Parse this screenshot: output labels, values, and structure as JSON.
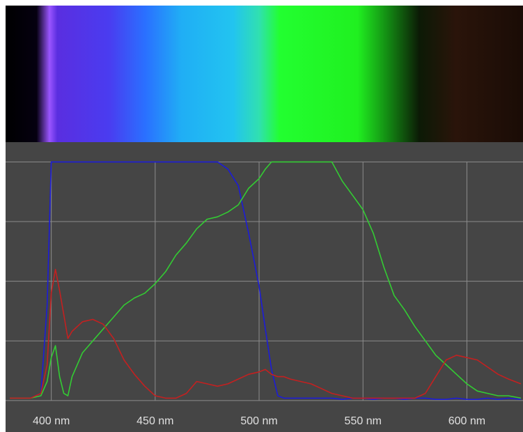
{
  "chart_data": {
    "type": "line",
    "x": [
      380,
      390,
      395,
      398,
      400,
      402,
      404,
      406,
      408,
      410,
      415,
      420,
      425,
      430,
      435,
      440,
      445,
      450,
      455,
      460,
      465,
      470,
      475,
      480,
      485,
      490,
      495,
      500,
      503,
      506,
      509,
      512,
      515,
      520,
      525,
      530,
      535,
      540,
      545,
      550,
      555,
      560,
      565,
      570,
      575,
      580,
      585,
      590,
      595,
      600,
      605,
      610,
      615,
      620,
      626
    ],
    "xlim": [
      378,
      627
    ],
    "xticks": [
      {
        "value": 400,
        "label": "400 nm"
      },
      {
        "value": 450,
        "label": "450 nm"
      },
      {
        "value": 500,
        "label": "500 nm"
      },
      {
        "value": 550,
        "label": "550 nm"
      },
      {
        "value": 600,
        "label": "600 nm"
      }
    ],
    "ylim": [
      -1.5,
      108
    ],
    "yticks": [
      0,
      25,
      50,
      75,
      100
    ],
    "grid": true,
    "series": [
      {
        "color": "#1c1cd8",
        "values": [
          1,
          1,
          3,
          40,
          100,
          100,
          100,
          100,
          100,
          100,
          100,
          100,
          100,
          100,
          100,
          100,
          100,
          100,
          100,
          100,
          100,
          100,
          100,
          100,
          97,
          90,
          70,
          48,
          30,
          13,
          2,
          1,
          1,
          1,
          1,
          1,
          1,
          0.5,
          1,
          1,
          0.5,
          1,
          1,
          0.5,
          1,
          1,
          0.5,
          0.5,
          1,
          0.5,
          0.5,
          1,
          0.5,
          1,
          0.5
        ]
      },
      {
        "color": "#33cc33",
        "values": [
          1,
          1,
          2,
          8,
          18,
          23,
          10,
          3,
          2,
          10,
          20,
          25,
          30,
          35,
          40,
          43,
          45,
          49,
          54,
          61,
          66,
          72,
          76,
          77,
          79,
          82,
          89,
          93,
          97,
          100,
          100,
          100,
          100,
          100,
          100,
          100,
          100,
          92,
          86,
          80,
          70,
          56,
          44,
          38,
          31,
          25,
          19,
          15,
          11,
          7,
          4,
          3,
          2,
          2,
          1
        ]
      },
      {
        "color": "#c42020",
        "values": [
          1,
          1,
          3,
          15,
          45,
          55,
          46,
          36,
          26,
          29,
          33,
          34,
          32,
          26,
          17,
          11,
          6,
          2,
          1,
          1,
          3,
          8,
          7,
          6,
          7,
          9,
          11,
          12,
          13,
          11,
          10,
          10,
          9,
          8,
          7,
          5,
          3,
          2,
          1,
          1,
          1,
          1,
          1,
          1,
          1,
          3,
          10,
          17,
          19,
          18,
          17,
          14,
          11,
          9,
          7
        ]
      }
    ]
  }
}
